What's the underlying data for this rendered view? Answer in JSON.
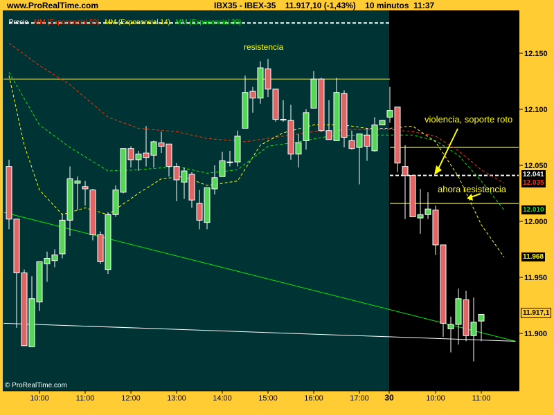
{
  "header": {
    "site": "www.ProRealTime.com",
    "instrument": "IBX35 - IBEX-35",
    "price": "11.917,10 (-1,43%)",
    "timeframe": "10 minutos",
    "time": "11:37"
  },
  "legend": {
    "price": "Precio",
    "ma50": "MM (Exponencial 50)",
    "ma14": "MM (Exponencial 14)",
    "ma30": "MM (Exponencial 30)"
  },
  "colors": {
    "background": "#ffcc33",
    "panel_day1": "#003333",
    "panel_day2": "#000000",
    "up": "#55d655",
    "down": "#e06666",
    "ma50": "#ff3300",
    "ma14": "#ffff00",
    "ma30": "#00ee00",
    "annotation": "#ffff00"
  },
  "copyright": "© ProRealTime.com",
  "chart_data": {
    "type": "candlestick",
    "price_axis": {
      "ticks": [
        "12.150",
        "12.100",
        "12.050",
        "12.000",
        "11.950",
        "11.900"
      ],
      "tick_values": [
        12150,
        12100,
        12050,
        12000,
        11950,
        11900
      ]
    },
    "time_axis": {
      "ticks": [
        "10:00",
        "11:00",
        "12:00",
        "13:00",
        "14:00",
        "15:00",
        "16:00",
        "17:00",
        "30",
        "10:00",
        "11:00"
      ],
      "tick_candle_index": [
        4,
        10,
        16,
        22,
        28,
        34,
        40,
        46,
        50,
        56,
        62
      ]
    },
    "day_break_after_index": 50,
    "ohlc_fields": [
      "open",
      "high",
      "low",
      "close"
    ],
    "candles": [
      [
        12049,
        12055,
        11993,
        12002
      ],
      [
        12002,
        12002,
        11905,
        11954
      ],
      [
        11954,
        11957,
        11889,
        11889
      ],
      [
        11888,
        11951,
        11888,
        11931
      ],
      [
        11928,
        11964,
        11920,
        11964
      ],
      [
        11962,
        11973,
        11946,
        11967
      ],
      [
        11965,
        11975,
        11959,
        11970
      ],
      [
        11971,
        12007,
        11967,
        12001
      ],
      [
        12001,
        12049,
        11987,
        12038
      ],
      [
        12034,
        12040,
        12010,
        12036
      ],
      [
        12031,
        12036,
        12014,
        12029
      ],
      [
        12028,
        12029,
        11983,
        11988
      ],
      [
        11988,
        11991,
        11962,
        11964
      ],
      [
        11957,
        12008,
        11953,
        12006
      ],
      [
        12006,
        12032,
        12004,
        12028
      ],
      [
        12026,
        12065,
        12025,
        12065
      ],
      [
        12065,
        12067,
        12048,
        12055
      ],
      [
        12055,
        12063,
        12045,
        12060
      ],
      [
        12061,
        12085,
        12049,
        12057
      ],
      [
        12059,
        12072,
        12048,
        12071
      ],
      [
        12070,
        12080,
        12061,
        12067
      ],
      [
        12069,
        12069,
        12040,
        12049
      ],
      [
        12049,
        12052,
        12018,
        12037
      ],
      [
        12035,
        12048,
        12020,
        12045
      ],
      [
        12042,
        12044,
        12012,
        12019
      ],
      [
        12016,
        12028,
        11993,
        12001
      ],
      [
        11999,
        12030,
        11993,
        12030
      ],
      [
        12029,
        12050,
        12024,
        12039
      ],
      [
        12040,
        12062,
        12040,
        12054
      ],
      [
        12053,
        12063,
        12049,
        12053
      ],
      [
        12053,
        12081,
        12049,
        12076
      ],
      [
        12083,
        12130,
        12083,
        12115
      ],
      [
        12116,
        12120,
        12097,
        12110
      ],
      [
        12110,
        12143,
        12105,
        12137
      ],
      [
        12136,
        12145,
        12111,
        12118
      ],
      [
        12118,
        12118,
        12089,
        12091
      ],
      [
        12091,
        12108,
        12089,
        12091
      ],
      [
        12090,
        12104,
        12055,
        12060
      ],
      [
        12060,
        12078,
        12048,
        12070
      ],
      [
        12072,
        12100,
        12064,
        12097
      ],
      [
        12101,
        12134,
        12101,
        12127
      ],
      [
        12127,
        12128,
        12080,
        12081
      ],
      [
        12081,
        12108,
        12073,
        12073
      ],
      [
        12072,
        12128,
        12072,
        12115
      ],
      [
        12114,
        12117,
        12066,
        12075
      ],
      [
        12072,
        12081,
        12064,
        12065
      ],
      [
        12066,
        12078,
        12033,
        12078
      ],
      [
        12077,
        12083,
        12054,
        12067
      ],
      [
        12063,
        12093,
        12062,
        12086
      ],
      [
        12086,
        12090,
        12086,
        12090
      ],
      [
        12093,
        12120,
        12088,
        12099
      ],
      [
        12102,
        12102,
        12044,
        12052
      ],
      [
        12049,
        12068,
        12002,
        12041
      ],
      [
        12041,
        12041,
        12004,
        12004
      ],
      [
        12003,
        12029,
        11989,
        12006
      ],
      [
        12006,
        12026,
        12002,
        12011
      ],
      [
        12010,
        12014,
        11970,
        11979
      ],
      [
        11979,
        11979,
        11897,
        11909
      ],
      [
        11904,
        11915,
        11883,
        11908
      ],
      [
        11908,
        11940,
        11890,
        11931
      ],
      [
        11930,
        11938,
        11893,
        11898
      ],
      [
        11898,
        11932,
        11875,
        11910
      ],
      [
        11911,
        11917,
        11893,
        11917
      ]
    ],
    "series": [
      {
        "name": "MM (Exponencial 50)",
        "points": [
          [
            0,
            12159
          ],
          [
            4,
            12139
          ],
          [
            8,
            12122
          ],
          [
            13,
            12093
          ],
          [
            17,
            12083
          ],
          [
            22,
            12080
          ],
          [
            26,
            12074
          ],
          [
            31,
            12071
          ],
          [
            35,
            12075
          ],
          [
            40,
            12080
          ],
          [
            45,
            12082
          ],
          [
            50,
            12082
          ],
          [
            53,
            12080
          ],
          [
            56,
            12076
          ],
          [
            59,
            12063
          ],
          [
            62,
            12046
          ],
          [
            65,
            12034
          ]
        ],
        "last_label": "12.035"
      },
      {
        "name": "MM (Exponencial 14)",
        "points": [
          [
            0,
            12130
          ],
          [
            2,
            12068
          ],
          [
            4,
            12028
          ],
          [
            7,
            12006
          ],
          [
            10,
            12012
          ],
          [
            13,
            12006
          ],
          [
            17,
            12025
          ],
          [
            20,
            12038
          ],
          [
            23,
            12040
          ],
          [
            26,
            12032
          ],
          [
            30,
            12036
          ],
          [
            33,
            12068
          ],
          [
            36,
            12079
          ],
          [
            40,
            12086
          ],
          [
            44,
            12086
          ],
          [
            47,
            12083
          ],
          [
            50,
            12083
          ],
          [
            53,
            12085
          ],
          [
            56,
            12071
          ],
          [
            59,
            12040
          ],
          [
            62,
            11997
          ],
          [
            65,
            11968
          ]
        ],
        "last_label": "11.968"
      },
      {
        "name": "MM (Exponencial 30)",
        "points": [
          [
            0,
            12133
          ],
          [
            4,
            12086
          ],
          [
            8,
            12066
          ],
          [
            13,
            12045
          ],
          [
            17,
            12046
          ],
          [
            22,
            12049
          ],
          [
            26,
            12043
          ],
          [
            30,
            12046
          ],
          [
            34,
            12067
          ],
          [
            38,
            12071
          ],
          [
            42,
            12076
          ],
          [
            46,
            12077
          ],
          [
            50,
            12077
          ],
          [
            53,
            12077
          ],
          [
            56,
            12072
          ],
          [
            59,
            12059
          ],
          [
            62,
            12036
          ],
          [
            65,
            12010
          ]
        ],
        "last_label": "12.010"
      }
    ],
    "trendlines": [
      {
        "color": "#00ee00",
        "from": [
          -0.7,
          12008
        ],
        "to": [
          66.5,
          11893
        ]
      },
      {
        "color": "#ffffff",
        "from": [
          -0.7,
          11909
        ],
        "to": [
          66.5,
          11893
        ]
      }
    ],
    "levels": [
      {
        "price": 12177,
        "color": "#ffffff",
        "dashed": true,
        "from": 0,
        "to": 50
      },
      {
        "price": 12127,
        "color": "#ffff66",
        "dashed": false,
        "from": -1,
        "to": 50
      },
      {
        "price": 12066,
        "color": "#ffff66",
        "dashed": false,
        "from": 50,
        "to": 67
      },
      {
        "price": 12041,
        "color": "#ffffff",
        "dashed": true,
        "from": 50,
        "to": 67
      },
      {
        "price": 12016,
        "color": "#ffff66",
        "dashed": false,
        "from": 50,
        "to": 67
      }
    ],
    "price_labels": [
      {
        "text": "12.041",
        "color": "#ffffff"
      },
      {
        "text": "12.035",
        "color": "#ff3300"
      },
      {
        "text": "12.010",
        "color": "#00ee00"
      },
      {
        "text": "11.968",
        "color": "#ffff00"
      },
      {
        "text": "11.917,1",
        "color": "#000000",
        "boxed": true
      }
    ],
    "annotations": [
      "resistencia",
      "violencia, soporte roto",
      "ahora resistencia"
    ]
  }
}
